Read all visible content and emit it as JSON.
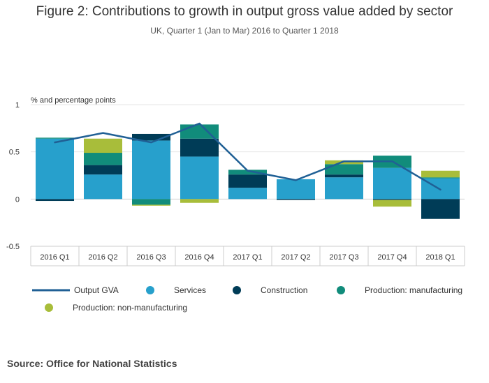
{
  "title": "Figure 2: Contributions to growth in output gross value added by sector",
  "subtitle": "UK, Quarter 1 (Jan to Mar) 2016 to Quarter 1 2018",
  "source": "Source: Office for National Statistics",
  "chart_data": {
    "type": "bar",
    "title": "Figure 2: Contributions to growth in output gross value added by sector",
    "subtitle": "UK, Quarter 1 (Jan to Mar) 2016 to Quarter 1 2018",
    "ylabel": "% and percentage points",
    "xlabel": "",
    "ylim": [
      -0.5,
      1
    ],
    "yticks": [
      1,
      0.5,
      0,
      -0.5
    ],
    "ytick_labels": [
      "1",
      "0.5",
      "0",
      "-0.5"
    ],
    "grid": true,
    "stacked": true,
    "legend_position": "bottom",
    "categories": [
      "2016 Q1",
      "2016 Q2",
      "2016 Q3",
      "2016 Q4",
      "2017 Q1",
      "2017 Q2",
      "2017 Q3",
      "2017 Q4",
      "2018 Q1"
    ],
    "series": [
      {
        "name": "Output GVA",
        "type": "line",
        "color": "#206095",
        "values": [
          0.6,
          0.7,
          0.6,
          0.8,
          0.3,
          0.2,
          0.4,
          0.4,
          0.1
        ]
      },
      {
        "name": "Services",
        "type": "bar",
        "color": "#27a0cc",
        "values": [
          0.64,
          0.26,
          0.62,
          0.45,
          0.12,
          0.21,
          0.23,
          0.33,
          0.22
        ]
      },
      {
        "name": "Construction",
        "type": "bar",
        "color": "#003c57",
        "values": [
          -0.02,
          0.1,
          0.07,
          0.19,
          0.14,
          -0.01,
          0.03,
          -0.01,
          -0.21
        ]
      },
      {
        "name": "Production: manufacturing",
        "type": "bar",
        "color": "#118c7b",
        "values": [
          0.01,
          0.13,
          -0.06,
          0.15,
          0.05,
          0.0,
          0.11,
          0.13,
          0.01
        ]
      },
      {
        "name": "Production: non-manufacturing",
        "type": "bar",
        "color": "#a8bd3a",
        "values": [
          0.0,
          0.15,
          -0.01,
          -0.04,
          0.0,
          0.0,
          0.04,
          -0.07,
          0.07
        ]
      }
    ]
  }
}
